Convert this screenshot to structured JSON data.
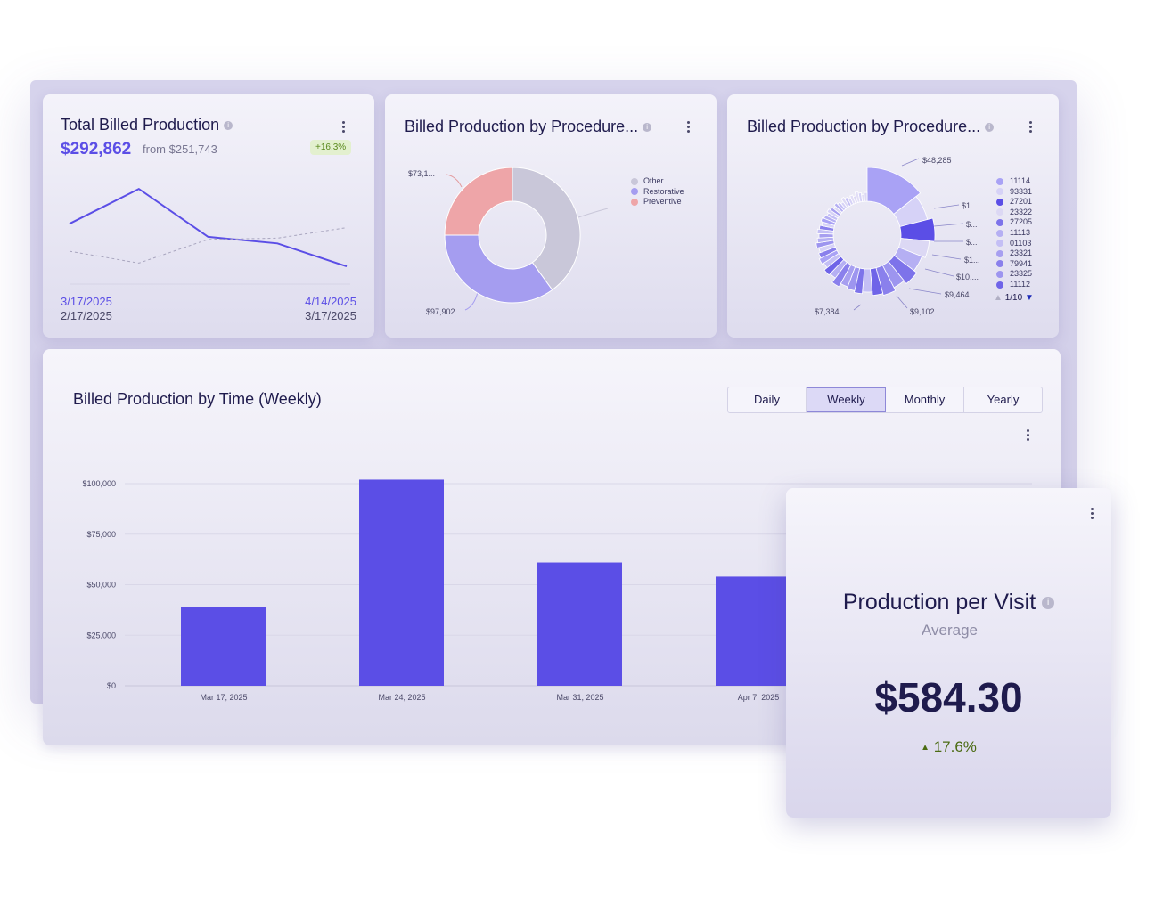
{
  "card1": {
    "title": "Total Billed Production",
    "value": "$292,862",
    "compare": "from $251,743",
    "badge": "+16.3%",
    "date_current_start": "3/17/2025",
    "date_previous_start": "2/17/2025",
    "date_current_end": "4/14/2025",
    "date_previous_end": "3/17/2025",
    "colors": {
      "current": "#5b4ee6",
      "previous": "#a9a6bf"
    }
  },
  "card2": {
    "title": "Billed Production by Procedure...",
    "label_top": "$73,1...",
    "label_bottom": "$97,902",
    "legend": [
      {
        "label": "Other",
        "color": "#c9c7d9"
      },
      {
        "label": "Restorative",
        "color": "#a59df0"
      },
      {
        "label": "Preventive",
        "color": "#eea5a8"
      }
    ]
  },
  "card3": {
    "title": "Billed Production by Procedure...",
    "labels": [
      "$48,285",
      "$1...",
      "$...",
      "$...",
      "$1...",
      "$10,...",
      "$9,464",
      "$9,102",
      "$7,384"
    ],
    "legend": [
      {
        "label": "11114",
        "color": "#a9a2f5"
      },
      {
        "label": "93331",
        "color": "#d6d2f7"
      },
      {
        "label": "27201",
        "color": "#5b4ee6"
      },
      {
        "label": "23322",
        "color": "#dcd8f4"
      },
      {
        "label": "27205",
        "color": "#7d73ea"
      },
      {
        "label": "11113",
        "color": "#b5aff3"
      },
      {
        "label": "01103",
        "color": "#c4bff5"
      },
      {
        "label": "23321",
        "color": "#a79ff0"
      },
      {
        "label": "79941",
        "color": "#8a80ec"
      },
      {
        "label": "23325",
        "color": "#9d95ef"
      },
      {
        "label": "11112",
        "color": "#6f64e8"
      }
    ],
    "pager": "1/10"
  },
  "bar_card": {
    "title": "Billed Production by Time (Weekly)",
    "tabs": [
      "Daily",
      "Weekly",
      "Monthly",
      "Yearly"
    ],
    "active_tab": "Weekly"
  },
  "chart_data": [
    {
      "type": "line",
      "x": [
        "3/17/2025",
        "",
        "",
        "",
        "4/14/2025"
      ],
      "series": [
        {
          "values": [
            292,
            345,
            272,
            262,
            227
          ]
        },
        {
          "values": [
            250,
            232,
            268,
            270,
            286
          ]
        }
      ]
    },
    {
      "type": "pie",
      "labels": [
        "Other",
        "Restorative",
        "Preventive"
      ],
      "values": [
        40,
        35,
        25
      ]
    },
    {
      "type": "bar",
      "categories": [
        "Mar 17, 2025",
        "Mar 24, 2025",
        "Mar 31, 2025",
        "Apr 7, 2025"
      ],
      "values": [
        39000,
        102000,
        61000,
        54000
      ],
      "yticks": [
        "$0",
        "$25,000",
        "$50,000",
        "$75,000",
        "$100,000"
      ],
      "ylim": [
        0,
        100000
      ],
      "grid": true,
      "bar_color": "#5b4ee6"
    }
  ],
  "visit_card": {
    "title": "Production per Visit",
    "subtitle": "Average",
    "value": "$584.30",
    "change": "17.6%",
    "change_color": "#4b6b13"
  }
}
